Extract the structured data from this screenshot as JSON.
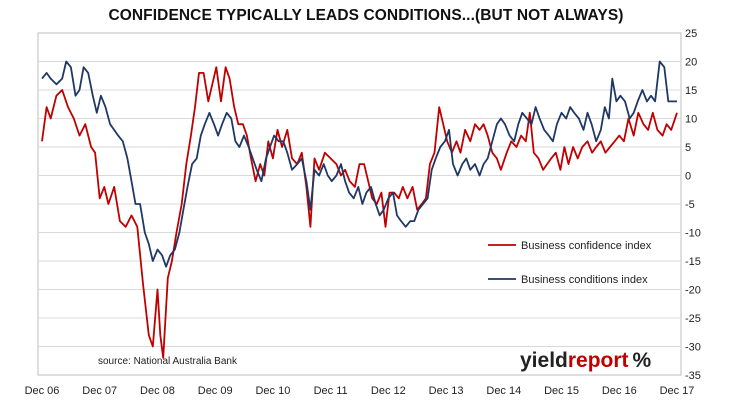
{
  "title": "CONFIDENCE TYPICALLY LEADS CONDITIONS...(BUT NOT ALWAYS)",
  "source_note": "source: National Australia Bank",
  "logo": {
    "part1": "yield",
    "part2": "report",
    "part3": "%"
  },
  "colors": {
    "confidence": "#c00000",
    "conditions": "#1f3864",
    "grid": "#d9d9d9",
    "frame": "#bfbfbf",
    "logo_dark": "#222222",
    "logo_red": "#c00000"
  },
  "chart_data": {
    "type": "line",
    "title": "CONFIDENCE TYPICALLY LEADS CONDITIONS...(BUT NOT ALWAYS)",
    "x_unit": "years since Dec 2006",
    "x_tick_labels": [
      "Dec 06",
      "Dec 07",
      "Dec 08",
      "Dec 09",
      "Dec 10",
      "Dec 11",
      "Dec 12",
      "Dec 13",
      "Dec 14",
      "Dec 15",
      "Dec 16",
      "Dec 17"
    ],
    "xlim": [
      0,
      11
    ],
    "ylim": [
      -35,
      25
    ],
    "y_ticks": [
      -35,
      -30,
      -25,
      -20,
      -15,
      -10,
      -5,
      0,
      5,
      10,
      15,
      20,
      25
    ],
    "y_axis_side": "right",
    "grid": true,
    "legend": "right-middle",
    "series": [
      {
        "name": "Business confidence index",
        "color": "#c00000",
        "points": [
          [
            0.0,
            6
          ],
          [
            0.08,
            12
          ],
          [
            0.15,
            10
          ],
          [
            0.25,
            14
          ],
          [
            0.35,
            15
          ],
          [
            0.45,
            12
          ],
          [
            0.55,
            10
          ],
          [
            0.65,
            7
          ],
          [
            0.75,
            9
          ],
          [
            0.85,
            5
          ],
          [
            0.92,
            4
          ],
          [
            1.0,
            -4
          ],
          [
            1.08,
            -2
          ],
          [
            1.15,
            -5
          ],
          [
            1.25,
            -2
          ],
          [
            1.35,
            -8
          ],
          [
            1.45,
            -9
          ],
          [
            1.55,
            -7
          ],
          [
            1.65,
            -9
          ],
          [
            1.75,
            -19
          ],
          [
            1.85,
            -28
          ],
          [
            1.92,
            -30
          ],
          [
            2.0,
            -20
          ],
          [
            2.05,
            -28
          ],
          [
            2.1,
            -32
          ],
          [
            2.18,
            -18
          ],
          [
            2.25,
            -15
          ],
          [
            2.33,
            -10
          ],
          [
            2.42,
            -5
          ],
          [
            2.5,
            2
          ],
          [
            2.58,
            7
          ],
          [
            2.65,
            12
          ],
          [
            2.72,
            18
          ],
          [
            2.8,
            18
          ],
          [
            2.88,
            13
          ],
          [
            2.95,
            16
          ],
          [
            3.02,
            19
          ],
          [
            3.1,
            13
          ],
          [
            3.18,
            19
          ],
          [
            3.25,
            17
          ],
          [
            3.33,
            12
          ],
          [
            3.4,
            9
          ],
          [
            3.48,
            9
          ],
          [
            3.55,
            7
          ],
          [
            3.62,
            3
          ],
          [
            3.7,
            -1
          ],
          [
            3.78,
            2
          ],
          [
            3.85,
            0
          ],
          [
            3.92,
            6
          ],
          [
            4.0,
            3
          ],
          [
            4.08,
            8
          ],
          [
            4.16,
            5
          ],
          [
            4.25,
            8
          ],
          [
            4.33,
            3
          ],
          [
            4.42,
            2
          ],
          [
            4.5,
            4
          ],
          [
            4.58,
            -2
          ],
          [
            4.65,
            -9
          ],
          [
            4.72,
            3
          ],
          [
            4.8,
            1
          ],
          [
            4.9,
            4
          ],
          [
            5.0,
            3
          ],
          [
            5.1,
            2
          ],
          [
            5.18,
            0
          ],
          [
            5.25,
            1
          ],
          [
            5.33,
            -1
          ],
          [
            5.42,
            -2
          ],
          [
            5.5,
            2
          ],
          [
            5.58,
            2
          ],
          [
            5.65,
            -1
          ],
          [
            5.72,
            -4
          ],
          [
            5.8,
            -5
          ],
          [
            5.88,
            -3
          ],
          [
            5.95,
            -9
          ],
          [
            6.02,
            -3
          ],
          [
            6.1,
            -3
          ],
          [
            6.18,
            -4
          ],
          [
            6.25,
            -2
          ],
          [
            6.33,
            -4
          ],
          [
            6.42,
            -2
          ],
          [
            6.5,
            -6
          ],
          [
            6.58,
            -5
          ],
          [
            6.65,
            -4
          ],
          [
            6.72,
            2
          ],
          [
            6.8,
            4
          ],
          [
            6.88,
            12
          ],
          [
            6.95,
            9
          ],
          [
            7.02,
            6
          ],
          [
            7.1,
            4
          ],
          [
            7.18,
            6
          ],
          [
            7.25,
            4
          ],
          [
            7.33,
            8
          ],
          [
            7.42,
            6
          ],
          [
            7.5,
            9
          ],
          [
            7.58,
            8
          ],
          [
            7.65,
            9
          ],
          [
            7.72,
            7
          ],
          [
            7.8,
            4
          ],
          [
            7.88,
            3
          ],
          [
            7.95,
            1
          ],
          [
            8.05,
            4
          ],
          [
            8.13,
            6
          ],
          [
            8.22,
            5
          ],
          [
            8.3,
            7
          ],
          [
            8.38,
            6
          ],
          [
            8.45,
            11
          ],
          [
            8.52,
            4
          ],
          [
            8.6,
            3
          ],
          [
            8.68,
            1
          ],
          [
            8.75,
            2
          ],
          [
            8.82,
            3
          ],
          [
            8.9,
            4
          ],
          [
            8.98,
            1
          ],
          [
            9.05,
            5
          ],
          [
            9.12,
            2
          ],
          [
            9.2,
            5
          ],
          [
            9.28,
            3
          ],
          [
            9.36,
            5
          ],
          [
            9.45,
            6
          ],
          [
            9.53,
            4
          ],
          [
            9.6,
            5
          ],
          [
            9.68,
            6
          ],
          [
            9.76,
            4
          ],
          [
            9.84,
            5
          ],
          [
            9.92,
            6
          ],
          [
            10.0,
            7
          ],
          [
            10.08,
            6
          ],
          [
            10.16,
            10
          ],
          [
            10.25,
            7
          ],
          [
            10.33,
            11
          ],
          [
            10.42,
            9
          ],
          [
            10.5,
            8
          ],
          [
            10.58,
            11
          ],
          [
            10.66,
            8
          ],
          [
            10.75,
            7
          ],
          [
            10.82,
            9
          ],
          [
            10.9,
            8
          ],
          [
            11.0,
            11
          ]
        ]
      },
      {
        "name": "Business conditions index",
        "color": "#1f3864",
        "points": [
          [
            0.0,
            17
          ],
          [
            0.08,
            18
          ],
          [
            0.15,
            17
          ],
          [
            0.25,
            16
          ],
          [
            0.35,
            17
          ],
          [
            0.42,
            20
          ],
          [
            0.5,
            19
          ],
          [
            0.58,
            14
          ],
          [
            0.65,
            15
          ],
          [
            0.72,
            19
          ],
          [
            0.8,
            18
          ],
          [
            0.88,
            14
          ],
          [
            0.95,
            11
          ],
          [
            1.02,
            14
          ],
          [
            1.1,
            12
          ],
          [
            1.18,
            9
          ],
          [
            1.25,
            8
          ],
          [
            1.32,
            7
          ],
          [
            1.4,
            6
          ],
          [
            1.48,
            3
          ],
          [
            1.55,
            -1
          ],
          [
            1.62,
            -5
          ],
          [
            1.7,
            -5
          ],
          [
            1.78,
            -10
          ],
          [
            1.85,
            -12
          ],
          [
            1.92,
            -15
          ],
          [
            2.0,
            -13
          ],
          [
            2.08,
            -14
          ],
          [
            2.15,
            -16
          ],
          [
            2.22,
            -14
          ],
          [
            2.3,
            -13
          ],
          [
            2.38,
            -10
          ],
          [
            2.45,
            -6
          ],
          [
            2.52,
            -2
          ],
          [
            2.6,
            2
          ],
          [
            2.68,
            3
          ],
          [
            2.75,
            7
          ],
          [
            2.82,
            9
          ],
          [
            2.9,
            11
          ],
          [
            2.98,
            9
          ],
          [
            3.05,
            7
          ],
          [
            3.12,
            9
          ],
          [
            3.2,
            11
          ],
          [
            3.28,
            10
          ],
          [
            3.35,
            6
          ],
          [
            3.42,
            5
          ],
          [
            3.5,
            7
          ],
          [
            3.58,
            5
          ],
          [
            3.65,
            3
          ],
          [
            3.72,
            1
          ],
          [
            3.8,
            -1
          ],
          [
            3.88,
            3
          ],
          [
            3.95,
            5
          ],
          [
            4.02,
            7
          ],
          [
            4.1,
            6
          ],
          [
            4.18,
            6
          ],
          [
            4.25,
            4
          ],
          [
            4.33,
            1
          ],
          [
            4.42,
            2
          ],
          [
            4.5,
            3
          ],
          [
            4.58,
            -1
          ],
          [
            4.65,
            -6
          ],
          [
            4.72,
            1
          ],
          [
            4.8,
            0
          ],
          [
            4.88,
            2
          ],
          [
            4.95,
            0
          ],
          [
            5.02,
            -1
          ],
          [
            5.1,
            0
          ],
          [
            5.18,
            2
          ],
          [
            5.25,
            -1
          ],
          [
            5.32,
            -3
          ],
          [
            5.4,
            -4
          ],
          [
            5.48,
            -2
          ],
          [
            5.55,
            -5
          ],
          [
            5.62,
            -3
          ],
          [
            5.7,
            -2
          ],
          [
            5.78,
            -5
          ],
          [
            5.85,
            -7
          ],
          [
            5.92,
            -6
          ],
          [
            6.0,
            -4
          ],
          [
            6.08,
            -3
          ],
          [
            6.15,
            -7
          ],
          [
            6.22,
            -8
          ],
          [
            6.3,
            -9
          ],
          [
            6.38,
            -8
          ],
          [
            6.45,
            -8
          ],
          [
            6.52,
            -6
          ],
          [
            6.6,
            -5
          ],
          [
            6.68,
            -4
          ],
          [
            6.75,
            1
          ],
          [
            6.82,
            3
          ],
          [
            6.9,
            5
          ],
          [
            6.98,
            6
          ],
          [
            7.05,
            8
          ],
          [
            7.12,
            2
          ],
          [
            7.2,
            0
          ],
          [
            7.28,
            2
          ],
          [
            7.35,
            3
          ],
          [
            7.42,
            1
          ],
          [
            7.5,
            2
          ],
          [
            7.58,
            0
          ],
          [
            7.65,
            2
          ],
          [
            7.72,
            3
          ],
          [
            7.8,
            6
          ],
          [
            7.88,
            9
          ],
          [
            7.95,
            10
          ],
          [
            8.02,
            9
          ],
          [
            8.1,
            7
          ],
          [
            8.18,
            6
          ],
          [
            8.25,
            9
          ],
          [
            8.32,
            11
          ],
          [
            8.4,
            10
          ],
          [
            8.48,
            9
          ],
          [
            8.55,
            12
          ],
          [
            8.62,
            10
          ],
          [
            8.7,
            8
          ],
          [
            8.78,
            7
          ],
          [
            8.85,
            6
          ],
          [
            8.92,
            9
          ],
          [
            9.0,
            11
          ],
          [
            9.08,
            10
          ],
          [
            9.15,
            12
          ],
          [
            9.22,
            11
          ],
          [
            9.3,
            10
          ],
          [
            9.38,
            8
          ],
          [
            9.45,
            11
          ],
          [
            9.52,
            9
          ],
          [
            9.6,
            6
          ],
          [
            9.68,
            8
          ],
          [
            9.75,
            12
          ],
          [
            9.82,
            10
          ],
          [
            9.88,
            17
          ],
          [
            9.95,
            13
          ],
          [
            10.02,
            14
          ],
          [
            10.1,
            13
          ],
          [
            10.18,
            10
          ],
          [
            10.25,
            11
          ],
          [
            10.32,
            13
          ],
          [
            10.4,
            15
          ],
          [
            10.48,
            13
          ],
          [
            10.55,
            14
          ],
          [
            10.62,
            13
          ],
          [
            10.7,
            20
          ],
          [
            10.78,
            19
          ],
          [
            10.85,
            13
          ],
          [
            10.92,
            13
          ],
          [
            11.0,
            13
          ]
        ]
      }
    ]
  }
}
